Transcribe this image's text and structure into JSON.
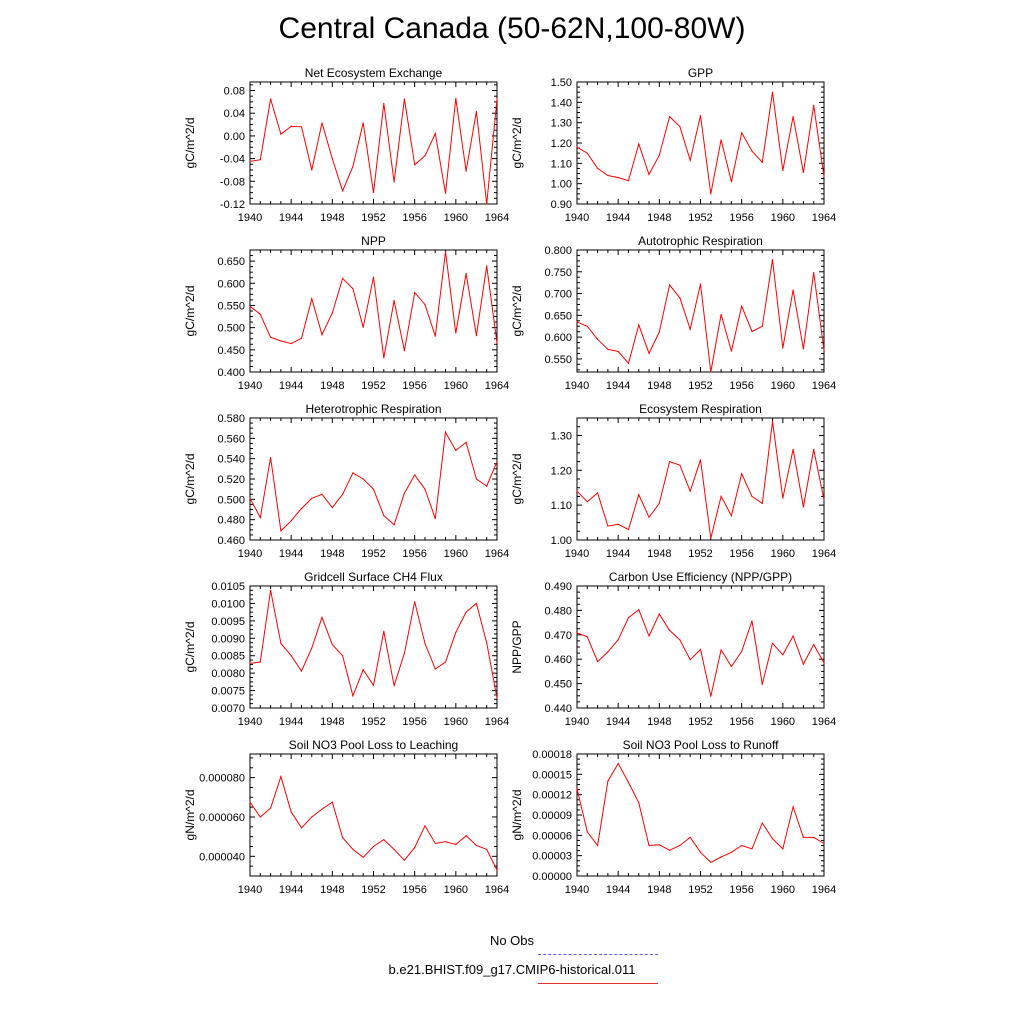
{
  "title": "Central Canada (50-62N,100-80W)",
  "legend": {
    "entries": [
      {
        "label": "No Obs",
        "color": "#5a5aff",
        "style": "dashed"
      },
      {
        "label": "b.e21.BHIST.f09_g17.CMIP6-historical.011",
        "color": "#e53030",
        "style": "solid"
      }
    ]
  },
  "colors": {
    "series": "#ff0000"
  },
  "chart_data": [
    {
      "type": "line",
      "title": "Net Ecosystem Exchange",
      "ylabel": "gC/m^2/d",
      "xlim": [
        1940,
        1964
      ],
      "ylim": [
        -0.12,
        0.095
      ],
      "xticks": [
        1940,
        1944,
        1948,
        1952,
        1956,
        1960,
        1964
      ],
      "yticks": [
        -0.12,
        -0.08,
        -0.04,
        0.0,
        0.04,
        0.08
      ],
      "ytick_labels": [
        "-0.12",
        "-0.08",
        "-0.04",
        "0.00",
        "0.04",
        "0.08"
      ],
      "x": [
        1940,
        1941,
        1942,
        1943,
        1944,
        1945,
        1946,
        1947,
        1948,
        1949,
        1950,
        1951,
        1952,
        1953,
        1954,
        1955,
        1956,
        1957,
        1958,
        1959,
        1960,
        1961,
        1962,
        1963,
        1964
      ],
      "values": [
        -0.045,
        -0.042,
        0.065,
        0.003,
        0.017,
        0.016,
        -0.06,
        0.023,
        -0.04,
        -0.097,
        -0.054,
        0.023,
        -0.1,
        0.057,
        -0.081,
        0.065,
        -0.051,
        -0.035,
        0.004,
        -0.101,
        0.066,
        -0.062,
        0.043,
        -0.12,
        0.065
      ]
    },
    {
      "type": "line",
      "title": "GPP",
      "ylabel": "gC/m^2/d",
      "xlim": [
        1940,
        1964
      ],
      "ylim": [
        0.9,
        1.5
      ],
      "xticks": [
        1940,
        1944,
        1948,
        1952,
        1956,
        1960,
        1964
      ],
      "yticks": [
        0.9,
        1.0,
        1.1,
        1.2,
        1.3,
        1.4,
        1.5
      ],
      "ytick_labels": [
        "0.90",
        "1.00",
        "1.10",
        "1.20",
        "1.30",
        "1.40",
        "1.50"
      ],
      "x": [
        1940,
        1941,
        1942,
        1943,
        1944,
        1945,
        1946,
        1947,
        1948,
        1949,
        1950,
        1951,
        1952,
        1953,
        1954,
        1955,
        1956,
        1957,
        1958,
        1959,
        1960,
        1961,
        1962,
        1963,
        1964
      ],
      "values": [
        1.18,
        1.15,
        1.075,
        1.04,
        1.03,
        1.015,
        1.195,
        1.045,
        1.14,
        1.33,
        1.28,
        1.115,
        1.335,
        0.95,
        1.215,
        1.01,
        1.25,
        1.16,
        1.105,
        1.45,
        1.065,
        1.33,
        1.055,
        1.385,
        1.035
      ]
    },
    {
      "type": "line",
      "title": "NPP",
      "ylabel": "gC/m^2/d",
      "xlim": [
        1940,
        1964
      ],
      "ylim": [
        0.4,
        0.675
      ],
      "xticks": [
        1940,
        1944,
        1948,
        1952,
        1956,
        1960,
        1964
      ],
      "yticks": [
        0.4,
        0.45,
        0.5,
        0.55,
        0.6,
        0.65
      ],
      "ytick_labels": [
        "0.400",
        "0.450",
        "0.500",
        "0.550",
        "0.600",
        "0.650"
      ],
      "x": [
        1940,
        1941,
        1942,
        1943,
        1944,
        1945,
        1946,
        1947,
        1948,
        1949,
        1950,
        1951,
        1952,
        1953,
        1954,
        1955,
        1956,
        1957,
        1958,
        1959,
        1960,
        1961,
        1962,
        1963,
        1964
      ],
      "values": [
        0.548,
        0.53,
        0.478,
        0.47,
        0.464,
        0.476,
        0.565,
        0.484,
        0.533,
        0.611,
        0.588,
        0.501,
        0.614,
        0.432,
        0.561,
        0.448,
        0.579,
        0.552,
        0.481,
        0.671,
        0.488,
        0.622,
        0.482,
        0.639,
        0.465
      ]
    },
    {
      "type": "line",
      "title": "Autotrophic Respiration",
      "ylabel": "gC/m^2/d",
      "xlim": [
        1940,
        1964
      ],
      "ylim": [
        0.52,
        0.8
      ],
      "xticks": [
        1940,
        1944,
        1948,
        1952,
        1956,
        1960,
        1964
      ],
      "yticks": [
        0.55,
        0.6,
        0.65,
        0.7,
        0.75,
        0.8
      ],
      "ytick_labels": [
        "0.550",
        "0.600",
        "0.650",
        "0.700",
        "0.750",
        "0.800"
      ],
      "x": [
        1940,
        1941,
        1942,
        1943,
        1944,
        1945,
        1946,
        1947,
        1948,
        1949,
        1950,
        1951,
        1952,
        1953,
        1954,
        1955,
        1956,
        1957,
        1958,
        1959,
        1960,
        1961,
        1962,
        1963,
        1964
      ],
      "values": [
        0.635,
        0.625,
        0.595,
        0.572,
        0.567,
        0.54,
        0.628,
        0.563,
        0.612,
        0.72,
        0.69,
        0.618,
        0.722,
        0.52,
        0.652,
        0.568,
        0.671,
        0.613,
        0.625,
        0.778,
        0.575,
        0.708,
        0.573,
        0.748,
        0.57
      ]
    },
    {
      "type": "line",
      "title": "Heterotrophic Respiration",
      "ylabel": "gC/m^2/d",
      "xlim": [
        1940,
        1964
      ],
      "ylim": [
        0.46,
        0.58
      ],
      "xticks": [
        1940,
        1944,
        1948,
        1952,
        1956,
        1960,
        1964
      ],
      "yticks": [
        0.46,
        0.48,
        0.5,
        0.52,
        0.54,
        0.56,
        0.58
      ],
      "ytick_labels": [
        "0.460",
        "0.480",
        "0.500",
        "0.520",
        "0.540",
        "0.560",
        "0.580"
      ],
      "x": [
        1940,
        1941,
        1942,
        1943,
        1944,
        1945,
        1946,
        1947,
        1948,
        1949,
        1950,
        1951,
        1952,
        1953,
        1954,
        1955,
        1956,
        1957,
        1958,
        1959,
        1960,
        1961,
        1962,
        1963,
        1964
      ],
      "values": [
        0.501,
        0.482,
        0.541,
        0.469,
        0.479,
        0.491,
        0.501,
        0.505,
        0.492,
        0.505,
        0.526,
        0.52,
        0.51,
        0.484,
        0.475,
        0.506,
        0.524,
        0.51,
        0.481,
        0.566,
        0.548,
        0.556,
        0.52,
        0.513,
        0.537
      ]
    },
    {
      "type": "line",
      "title": "Ecosystem Respiration",
      "ylabel": "gC/m^2/d",
      "xlim": [
        1940,
        1964
      ],
      "ylim": [
        1.0,
        1.35
      ],
      "xticks": [
        1940,
        1944,
        1948,
        1952,
        1956,
        1960,
        1964
      ],
      "yticks": [
        1.0,
        1.1,
        1.2,
        1.3
      ],
      "ytick_labels": [
        "1.00",
        "1.10",
        "1.20",
        "1.30"
      ],
      "x": [
        1940,
        1941,
        1942,
        1943,
        1944,
        1945,
        1946,
        1947,
        1948,
        1949,
        1950,
        1951,
        1952,
        1953,
        1954,
        1955,
        1956,
        1957,
        1958,
        1959,
        1960,
        1961,
        1962,
        1963,
        1964
      ],
      "values": [
        1.14,
        1.11,
        1.135,
        1.04,
        1.045,
        1.03,
        1.13,
        1.065,
        1.105,
        1.225,
        1.215,
        1.14,
        1.23,
        1.005,
        1.125,
        1.07,
        1.19,
        1.125,
        1.105,
        1.34,
        1.12,
        1.26,
        1.095,
        1.26,
        1.115
      ]
    },
    {
      "type": "line",
      "title": "Gridcell Surface CH4 Flux",
      "ylabel": "gC/m^2/d",
      "xlim": [
        1940,
        1964
      ],
      "ylim": [
        0.007,
        0.0105
      ],
      "xticks": [
        1940,
        1944,
        1948,
        1952,
        1956,
        1960,
        1964
      ],
      "yticks": [
        0.007,
        0.0075,
        0.008,
        0.0085,
        0.009,
        0.0095,
        0.01,
        0.0105
      ],
      "ytick_labels": [
        "0.0070",
        "0.0075",
        "0.0080",
        "0.0085",
        "0.0090",
        "0.0095",
        "0.0100",
        "0.0105"
      ],
      "x": [
        1940,
        1941,
        1942,
        1943,
        1944,
        1945,
        1946,
        1947,
        1948,
        1949,
        1950,
        1951,
        1952,
        1953,
        1954,
        1955,
        1956,
        1957,
        1958,
        1959,
        1960,
        1961,
        1962,
        1963,
        1964
      ],
      "values": [
        0.00828,
        0.00832,
        0.01038,
        0.00885,
        0.0085,
        0.00806,
        0.00872,
        0.0096,
        0.00882,
        0.0085,
        0.00735,
        0.0081,
        0.00765,
        0.0092,
        0.00764,
        0.00857,
        0.01005,
        0.00885,
        0.00812,
        0.00832,
        0.00917,
        0.00975,
        0.01,
        0.00887,
        0.00728
      ]
    },
    {
      "type": "line",
      "title": "Carbon Use Efficiency (NPP/GPP)",
      "ylabel": "NPP/GPP",
      "xlim": [
        1940,
        1964
      ],
      "ylim": [
        0.44,
        0.49
      ],
      "xticks": [
        1940,
        1944,
        1948,
        1952,
        1956,
        1960,
        1964
      ],
      "yticks": [
        0.44,
        0.45,
        0.46,
        0.47,
        0.48,
        0.49
      ],
      "ytick_labels": [
        "0.440",
        "0.450",
        "0.460",
        "0.470",
        "0.480",
        "0.490"
      ],
      "x": [
        1940,
        1941,
        1942,
        1943,
        1944,
        1945,
        1946,
        1947,
        1948,
        1949,
        1950,
        1951,
        1952,
        1953,
        1954,
        1955,
        1956,
        1957,
        1958,
        1959,
        1960,
        1961,
        1962,
        1963,
        1964
      ],
      "values": [
        0.4708,
        0.4692,
        0.459,
        0.463,
        0.468,
        0.477,
        0.4803,
        0.4695,
        0.4785,
        0.4718,
        0.4679,
        0.4598,
        0.464,
        0.4448,
        0.4638,
        0.457,
        0.4632,
        0.4757,
        0.4497,
        0.4665,
        0.4618,
        0.4695,
        0.458,
        0.466,
        0.4585
      ]
    },
    {
      "type": "line",
      "title": "Soil NO3 Pool Loss to Leaching",
      "ylabel": "gN/m^2/d",
      "xlim": [
        1940,
        1964
      ],
      "ylim": [
        3e-05,
        9.2e-05
      ],
      "xticks": [
        1940,
        1944,
        1948,
        1952,
        1956,
        1960,
        1964
      ],
      "yticks": [
        4e-05,
        6e-05,
        8e-05
      ],
      "ytick_labels": [
        "0.000040",
        "0.000060",
        "0.000080"
      ],
      "x": [
        1940,
        1941,
        1942,
        1943,
        1944,
        1945,
        1946,
        1947,
        1948,
        1949,
        1950,
        1951,
        1952,
        1953,
        1954,
        1955,
        1956,
        1957,
        1958,
        1959,
        1960,
        1961,
        1962,
        1963,
        1964
      ],
      "values": [
        6.75e-05,
        6e-05,
        6.45e-05,
        8.05e-05,
        6.25e-05,
        5.45e-05,
        6e-05,
        6.4e-05,
        6.75e-05,
        4.95e-05,
        4.35e-05,
        3.95e-05,
        4.5e-05,
        4.85e-05,
        4.35e-05,
        3.8e-05,
        4.45e-05,
        5.55e-05,
        4.65e-05,
        4.75e-05,
        4.6e-05,
        5.05e-05,
        4.55e-05,
        4.35e-05,
        3.3e-05
      ]
    },
    {
      "type": "line",
      "title": "Soil NO3 Pool Loss to Runoff",
      "ylabel": "gN/m^2/d",
      "xlim": [
        1940,
        1964
      ],
      "ylim": [
        0.0,
        0.00018
      ],
      "xticks": [
        1940,
        1944,
        1948,
        1952,
        1956,
        1960,
        1964
      ],
      "yticks": [
        0.0,
        3e-05,
        6e-05,
        9e-05,
        0.00012,
        0.00015,
        0.00018
      ],
      "ytick_labels": [
        "0.00000",
        "0.00003",
        "0.00006",
        "0.00009",
        "0.00012",
        "0.00015",
        "0.00018"
      ],
      "x": [
        1940,
        1941,
        1942,
        1943,
        1944,
        1945,
        1946,
        1947,
        1948,
        1949,
        1950,
        1951,
        1952,
        1953,
        1954,
        1955,
        1956,
        1957,
        1958,
        1959,
        1960,
        1961,
        1962,
        1963,
        1964
      ],
      "values": [
        0.000129,
        6.5e-05,
        4.5e-05,
        0.00014,
        0.000166,
        0.000138,
        0.000108,
        4.5e-05,
        4.6e-05,
        3.8e-05,
        4.5e-05,
        5.7e-05,
        3.5e-05,
        2e-05,
        2.8e-05,
        3.5e-05,
        4.5e-05,
        4e-05,
        7.8e-05,
        5.5e-05,
        4e-05,
        0.000102,
        5.7e-05,
        5.7e-05,
        4.8e-05
      ]
    }
  ]
}
